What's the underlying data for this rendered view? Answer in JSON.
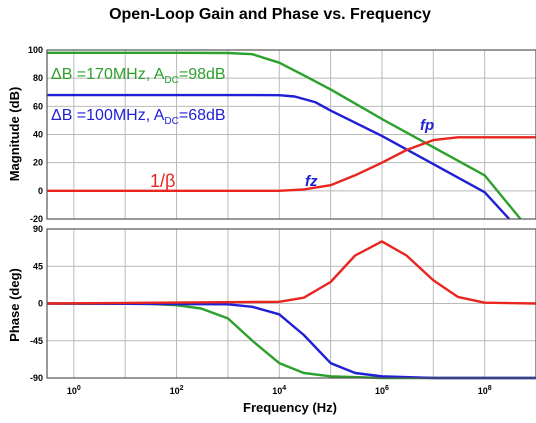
{
  "chart_data": [
    {
      "type": "line",
      "title": "Open-Loop Gain and Phase vs. Frequency",
      "ylabel": "Magnitude (dB)",
      "xscale": "log",
      "xlim": [
        0.3,
        1000000000
      ],
      "ylim": [
        -20,
        100
      ],
      "yticks": [
        "100",
        "80",
        "60",
        "40",
        "20",
        "0",
        "-20"
      ],
      "grid": true,
      "series": [
        {
          "name": "ΔB =170MHz, A_DC=98dB",
          "color": "#2ca02c",
          "x": [
            0.3,
            10,
            100,
            1000,
            3000,
            10000,
            30000,
            100000,
            1000000,
            10000000,
            100000000,
            500000000
          ],
          "y": [
            98,
            98,
            98,
            97.9,
            97,
            91,
            82,
            72,
            51,
            31,
            11,
            -20
          ]
        },
        {
          "name": "ΔB =100MHz, A_DC=68dB",
          "color": "#1f1fd6",
          "x": [
            0.3,
            100,
            3000,
            10000,
            20000,
            50000,
            100000,
            1000000,
            10000000,
            100000000,
            300000000
          ],
          "y": [
            68,
            68,
            68,
            67.9,
            67,
            63,
            57,
            39,
            19,
            -1,
            -20
          ]
        },
        {
          "name": "1/β",
          "color": "#e8261f",
          "x": [
            0.3,
            10000,
            30000,
            100000,
            300000,
            1000000,
            3000000,
            10000000,
            30000000,
            100000000,
            1000000000
          ],
          "y": [
            0,
            0,
            1,
            4,
            11,
            20,
            29,
            36,
            38,
            38,
            38
          ]
        }
      ],
      "annotations": [
        {
          "text": "fz",
          "color": "#1f1fd6"
        },
        {
          "text": "fp",
          "color": "#1f1fd6"
        }
      ]
    },
    {
      "type": "line",
      "xlabel": "Frequency  (Hz)",
      "ylabel": "Phase (deg)",
      "xscale": "log",
      "xlim": [
        0.3,
        1000000000
      ],
      "xticks": [
        "10",
        "10",
        "10",
        "10",
        "10"
      ],
      "xtick_exponents": [
        "0",
        "2",
        "4",
        "6",
        "8"
      ],
      "ylim": [
        -90,
        90
      ],
      "yticks": [
        "90",
        "45",
        "0",
        "-45",
        "-90"
      ],
      "grid": true,
      "series": [
        {
          "name": "ΔB =170MHz, A_DC=98dB",
          "color": "#2ca02c",
          "x": [
            0.3,
            30,
            100,
            300,
            1000,
            3000,
            10000,
            30000,
            100000,
            1000000,
            1000000000
          ],
          "y": [
            0,
            -0.5,
            -2,
            -6,
            -18,
            -45,
            -72,
            -84,
            -88,
            -90,
            -90
          ]
        },
        {
          "name": "ΔB =100MHz, A_DC=68dB",
          "color": "#1f1fd6",
          "x": [
            0.3,
            1000,
            3000,
            10000,
            30000,
            100000,
            300000,
            1000000,
            10000000,
            1000000000
          ],
          "y": [
            0,
            -1,
            -4,
            -13,
            -38,
            -72,
            -84,
            -88,
            -90,
            -90
          ]
        },
        {
          "name": "1/β",
          "color": "#e8261f",
          "x": [
            0.3,
            10000,
            30000,
            100000,
            300000,
            1000000,
            3000000,
            10000000,
            30000000,
            100000000,
            1000000000
          ],
          "y": [
            0,
            2,
            7,
            26,
            58,
            75,
            58,
            28,
            8,
            1,
            0
          ]
        }
      ]
    }
  ]
}
